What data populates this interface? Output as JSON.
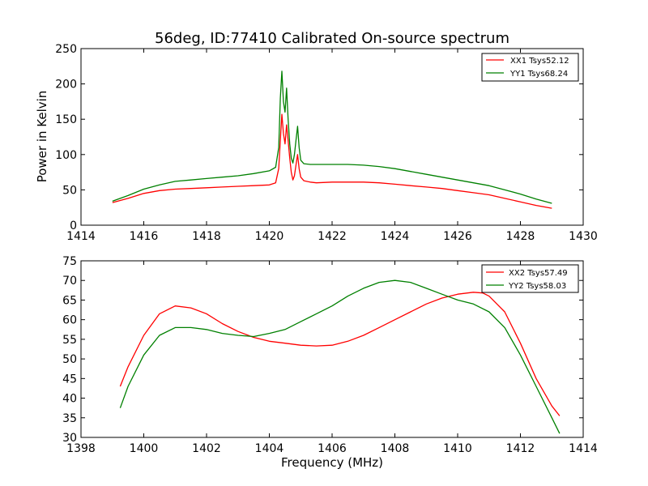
{
  "chart_data": [
    {
      "type": "line",
      "title": "56deg, ID:77410 Calibrated On-source spectrum",
      "xlabel": "",
      "ylabel": "Power in Kelvin",
      "xlim": [
        1414,
        1430
      ],
      "ylim": [
        0,
        250
      ],
      "xticks": [
        "1414",
        "1416",
        "1418",
        "1420",
        "1422",
        "1424",
        "1426",
        "1428",
        "1430"
      ],
      "yticks": [
        "0",
        "50",
        "100",
        "150",
        "200",
        "250"
      ],
      "legend_position": "top-right",
      "grid": false,
      "series": [
        {
          "name": "XX1 Tsys52.12",
          "color": "#ff0000",
          "x": [
            1415.0,
            1415.5,
            1416.0,
            1416.5,
            1417.0,
            1417.5,
            1418.0,
            1418.5,
            1419.0,
            1419.5,
            1420.0,
            1420.2,
            1420.3,
            1420.35,
            1420.4,
            1420.45,
            1420.5,
            1420.55,
            1420.6,
            1420.65,
            1420.7,
            1420.75,
            1420.8,
            1420.85,
            1420.9,
            1420.95,
            1421.0,
            1421.1,
            1421.3,
            1421.5,
            1422.0,
            1422.5,
            1423.0,
            1423.5,
            1424.0,
            1424.5,
            1425.0,
            1425.5,
            1426.0,
            1426.5,
            1427.0,
            1427.5,
            1428.0,
            1428.5,
            1429.0
          ],
          "y": [
            32,
            38,
            45,
            49,
            51,
            52,
            53,
            54,
            55,
            56,
            57,
            60,
            80,
            120,
            157,
            130,
            115,
            142,
            120,
            95,
            75,
            64,
            70,
            85,
            100,
            80,
            68,
            63,
            61,
            60,
            61,
            61,
            61,
            60,
            58,
            56,
            54,
            52,
            49,
            46,
            43,
            38,
            33,
            28,
            24
          ]
        },
        {
          "name": "YY1 Tsys68.24",
          "color": "#008000",
          "x": [
            1415.0,
            1415.5,
            1416.0,
            1416.5,
            1417.0,
            1417.5,
            1418.0,
            1418.5,
            1419.0,
            1419.5,
            1420.0,
            1420.2,
            1420.3,
            1420.35,
            1420.4,
            1420.45,
            1420.5,
            1420.55,
            1420.6,
            1420.65,
            1420.7,
            1420.75,
            1420.8,
            1420.85,
            1420.9,
            1420.95,
            1421.0,
            1421.1,
            1421.3,
            1421.5,
            1422.0,
            1422.5,
            1423.0,
            1423.5,
            1424.0,
            1424.5,
            1425.0,
            1425.5,
            1426.0,
            1426.5,
            1427.0,
            1427.5,
            1428.0,
            1428.5,
            1429.0
          ],
          "y": [
            34,
            42,
            51,
            57,
            62,
            64,
            66,
            68,
            70,
            73,
            77,
            82,
            110,
            180,
            218,
            175,
            160,
            194,
            150,
            115,
            95,
            88,
            100,
            120,
            140,
            110,
            92,
            87,
            86,
            86,
            86,
            86,
            85,
            83,
            80,
            76,
            72,
            68,
            64,
            60,
            56,
            50,
            44,
            37,
            31
          ]
        }
      ]
    },
    {
      "type": "line",
      "title": "",
      "xlabel": "Frequency (MHz)",
      "ylabel": "",
      "xlim": [
        1398,
        1414
      ],
      "ylim": [
        30,
        75
      ],
      "xticks": [
        "1398",
        "1400",
        "1402",
        "1404",
        "1406",
        "1408",
        "1410",
        "1412",
        "1414"
      ],
      "yticks": [
        "30",
        "35",
        "40",
        "45",
        "50",
        "55",
        "60",
        "65",
        "70",
        "75"
      ],
      "legend_position": "top-right",
      "grid": false,
      "series": [
        {
          "name": "XX2 Tsys57.49",
          "color": "#ff0000",
          "x": [
            1399.25,
            1399.5,
            1400.0,
            1400.5,
            1401.0,
            1401.5,
            1402.0,
            1402.5,
            1403.0,
            1403.5,
            1404.0,
            1404.5,
            1405.0,
            1405.5,
            1406.0,
            1406.5,
            1407.0,
            1407.5,
            1408.0,
            1408.5,
            1409.0,
            1409.5,
            1410.0,
            1410.5,
            1410.8,
            1411.0,
            1411.5,
            1412.0,
            1412.5,
            1413.0,
            1413.25
          ],
          "y": [
            43,
            48,
            56,
            61.5,
            63.5,
            63,
            61.5,
            59,
            57,
            55.5,
            54.5,
            54,
            53.5,
            53.3,
            53.5,
            54.5,
            56,
            58,
            60,
            62,
            64,
            65.5,
            66.5,
            67,
            66.8,
            66,
            62,
            54,
            45,
            38,
            35.5
          ]
        },
        {
          "name": "YY2 Tsys58.03",
          "color": "#008000",
          "x": [
            1399.25,
            1399.5,
            1400.0,
            1400.5,
            1401.0,
            1401.5,
            1402.0,
            1402.5,
            1403.0,
            1403.5,
            1404.0,
            1404.5,
            1405.0,
            1405.5,
            1406.0,
            1406.5,
            1407.0,
            1407.5,
            1408.0,
            1408.5,
            1409.0,
            1409.5,
            1410.0,
            1410.5,
            1411.0,
            1411.5,
            1412.0,
            1412.5,
            1413.0,
            1413.25
          ],
          "y": [
            37.5,
            43,
            51,
            56,
            58,
            58,
            57.5,
            56.5,
            56,
            55.7,
            56.5,
            57.5,
            59.5,
            61.5,
            63.5,
            66,
            68,
            69.5,
            70,
            69.5,
            68,
            66.5,
            65,
            64,
            62,
            58,
            51,
            43,
            35,
            31
          ]
        }
      ]
    }
  ]
}
